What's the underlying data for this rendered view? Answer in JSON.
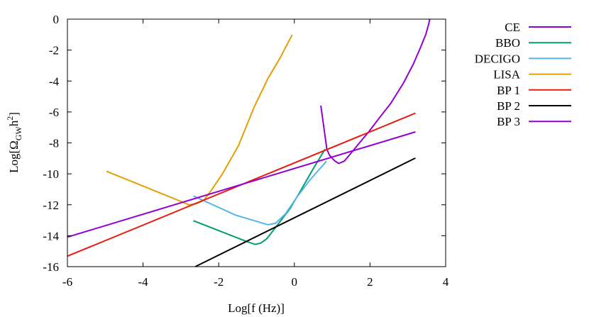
{
  "chart_data": {
    "type": "line",
    "title": "",
    "xlabel": "Log[f (Hz)]",
    "ylabel": {
      "main": "Log[Ω",
      "sub": "GW",
      "mid": "h",
      "sup": "2",
      "end": "]"
    },
    "xlim": [
      -6,
      4
    ],
    "ylim": [
      -16,
      0
    ],
    "xticks": [
      -6,
      -4,
      -2,
      0,
      2,
      4
    ],
    "yticks": [
      0,
      -2,
      -4,
      -6,
      -8,
      -10,
      -12,
      -14,
      -16
    ],
    "grid": false,
    "legend_placement": "outside-right-top",
    "series": [
      {
        "name": "CE",
        "color": "#9400d3",
        "points": [
          [
            0.7,
            -5.59
          ],
          [
            0.8,
            -7.35
          ],
          [
            0.86,
            -8.41
          ],
          [
            0.93,
            -8.8
          ],
          [
            1.06,
            -9.15
          ],
          [
            1.17,
            -9.33
          ],
          [
            1.32,
            -9.18
          ],
          [
            1.45,
            -8.8
          ],
          [
            1.71,
            -8.03
          ],
          [
            1.97,
            -7.27
          ],
          [
            2.23,
            -6.43
          ],
          [
            2.55,
            -5.44
          ],
          [
            2.88,
            -4.15
          ],
          [
            3.14,
            -2.93
          ],
          [
            3.33,
            -1.86
          ],
          [
            3.48,
            -0.95
          ],
          [
            3.55,
            -0.34
          ],
          [
            3.58,
            0
          ]
        ]
      },
      {
        "name": "BBO",
        "color": "#009e73",
        "points": [
          [
            -2.67,
            -13.03
          ],
          [
            -1.28,
            -14.36
          ],
          [
            -1.04,
            -14.56
          ],
          [
            -0.89,
            -14.48
          ],
          [
            -0.73,
            -14.2
          ],
          [
            -0.44,
            -13.29
          ],
          [
            -0.11,
            -12.23
          ],
          [
            0.15,
            -11.16
          ],
          [
            0.47,
            -9.79
          ],
          [
            0.81,
            -8.41
          ]
        ]
      },
      {
        "name": "DECIGO",
        "color": "#56b4e9",
        "points": [
          [
            -2.67,
            -11.43
          ],
          [
            -1.54,
            -12.68
          ],
          [
            -0.7,
            -13.29
          ],
          [
            -0.5,
            -13.2
          ],
          [
            -0.24,
            -12.6
          ],
          [
            0.08,
            -11.46
          ],
          [
            0.41,
            -10.4
          ],
          [
            0.85,
            -9.18
          ]
        ]
      },
      {
        "name": "LISA",
        "color": "#e69f00",
        "points": [
          [
            -4.97,
            -9.83
          ],
          [
            -2.78,
            -12.0
          ],
          [
            -2.58,
            -11.92
          ],
          [
            -2.39,
            -11.7
          ],
          [
            -2.2,
            -11.08
          ],
          [
            -1.9,
            -10.0
          ],
          [
            -1.48,
            -8.19
          ],
          [
            -1.06,
            -5.67
          ],
          [
            -0.7,
            -3.84
          ],
          [
            -0.37,
            -2.47
          ],
          [
            -0.06,
            -1.02
          ]
        ]
      },
      {
        "name": "BP 1",
        "color": "#e51e10",
        "points": [
          [
            -6,
            -15.32
          ],
          [
            3.2,
            -6.08
          ]
        ]
      },
      {
        "name": "BP 2",
        "color": "#000000",
        "points": [
          [
            -2.62,
            -16
          ],
          [
            3.2,
            -8.98
          ]
        ]
      },
      {
        "name": "BP 3",
        "color": "#9400d3",
        "points": [
          [
            -6,
            -14.09
          ],
          [
            3.2,
            -7.29
          ]
        ]
      }
    ]
  }
}
